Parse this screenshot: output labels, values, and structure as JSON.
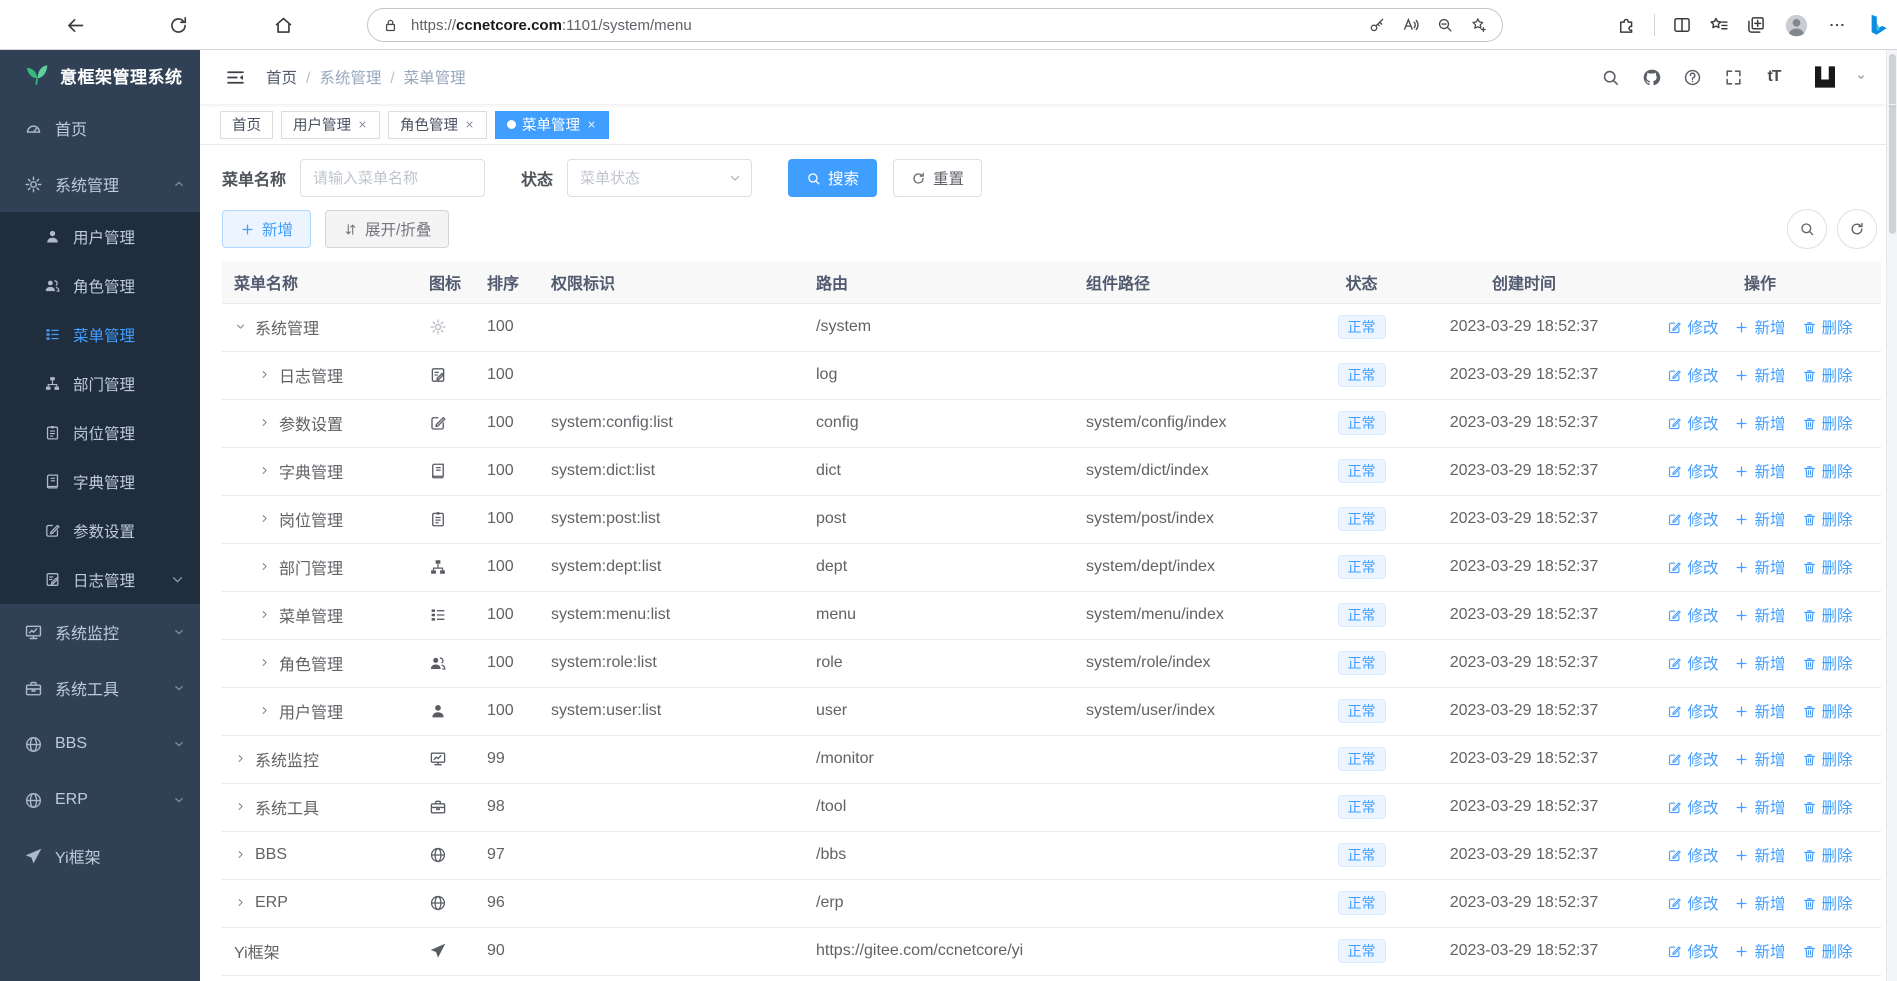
{
  "browser": {
    "url": {
      "scheme": "https://",
      "host": "ccnetcore.com",
      "rest": ":1101/system/menu"
    },
    "left_icons": [
      "back-icon",
      "reload-icon",
      "home-icon"
    ],
    "pill_left_icon": "lock-icon",
    "pill_right_icons": [
      "key-icon",
      "read-aloud-icon",
      "zoom-out-icon",
      "star-plus-icon"
    ],
    "right_icons": [
      "extensions-icon",
      "separator",
      "split-screen-icon",
      "favorites-icon",
      "collections-icon",
      "profile-avatar",
      "more-icon",
      "bing-icon"
    ]
  },
  "glyphs": {
    "font_size": "tT",
    "breadcrumb_separator": "/"
  },
  "sidebar": {
    "title": "意框架管理系统",
    "items": [
      {
        "label": "首页",
        "icon": "dashboard-icon"
      },
      {
        "label": "系统管理",
        "icon": "gear-icon",
        "chevron": "up",
        "children": [
          {
            "label": "用户管理",
            "icon": "user-icon"
          },
          {
            "label": "角色管理",
            "icon": "users-icon"
          },
          {
            "label": "菜单管理",
            "icon": "menu-icon",
            "active": true
          },
          {
            "label": "部门管理",
            "icon": "tree-icon"
          },
          {
            "label": "岗位管理",
            "icon": "badge-icon"
          },
          {
            "label": "字典管理",
            "icon": "book-icon"
          },
          {
            "label": "参数设置",
            "icon": "edit-icon"
          },
          {
            "label": "日志管理",
            "icon": "log-icon",
            "chevron": "down"
          }
        ]
      },
      {
        "label": "系统监控",
        "icon": "monitor-icon",
        "chevron": "down"
      },
      {
        "label": "系统工具",
        "icon": "toolbox-icon",
        "chevron": "down"
      },
      {
        "label": "BBS",
        "icon": "globe-icon",
        "chevron": "down"
      },
      {
        "label": "ERP",
        "icon": "globe-icon",
        "chevron": "down"
      },
      {
        "label": "Yi框架",
        "icon": "plane-icon"
      }
    ]
  },
  "header": {
    "breadcrumb": [
      "首页",
      "系统管理",
      "菜单管理"
    ],
    "right_icons": [
      "search-icon",
      "github-icon",
      "question-icon",
      "fullscreen-icon",
      "font-size-icon"
    ],
    "logo_icon": "yi-logo",
    "logo_caret_icon": "caret-down-icon"
  },
  "tabs": [
    {
      "label": "首页",
      "closable": false,
      "active": false
    },
    {
      "label": "用户管理",
      "closable": true,
      "active": false
    },
    {
      "label": "角色管理",
      "closable": true,
      "active": false
    },
    {
      "label": "菜单管理",
      "closable": true,
      "active": true
    }
  ],
  "filters": {
    "name_label": "菜单名称",
    "name_placeholder": "请输入菜单名称",
    "name_value": "",
    "status_label": "状态",
    "status_placeholder": "菜单状态",
    "search_label": "搜索",
    "reset_label": "重置"
  },
  "toolbar": {
    "add_label": "新增",
    "expand_label": "展开/折叠",
    "right_icons": [
      "search-icon",
      "refresh-icon"
    ]
  },
  "table": {
    "columns": [
      "菜单名称",
      "图标",
      "排序",
      "权限标识",
      "路由",
      "组件路径",
      "状态",
      "创建时间",
      "操作"
    ],
    "ops": {
      "edit": "修改",
      "add": "新增",
      "delete": "删除"
    },
    "rows": [
      {
        "name": "系统管理",
        "icon": "gear-icon",
        "icon_light": true,
        "sort": "100",
        "perm": "",
        "route": "/system",
        "component": "",
        "status": "正常",
        "created": "2023-03-29 18:52:37",
        "level": 1,
        "caret": "expanded"
      },
      {
        "name": "日志管理",
        "icon": "log-icon",
        "sort": "100",
        "perm": "",
        "route": "log",
        "component": "",
        "status": "正常",
        "created": "2023-03-29 18:52:37",
        "level": 2,
        "caret": "collapsed"
      },
      {
        "name": "参数设置",
        "icon": "edit-icon",
        "sort": "100",
        "perm": "system:config:list",
        "route": "config",
        "component": "system/config/index",
        "status": "正常",
        "created": "2023-03-29 18:52:37",
        "level": 2,
        "caret": "collapsed"
      },
      {
        "name": "字典管理",
        "icon": "book-icon",
        "sort": "100",
        "perm": "system:dict:list",
        "route": "dict",
        "component": "system/dict/index",
        "status": "正常",
        "created": "2023-03-29 18:52:37",
        "level": 2,
        "caret": "collapsed"
      },
      {
        "name": "岗位管理",
        "icon": "badge-icon",
        "sort": "100",
        "perm": "system:post:list",
        "route": "post",
        "component": "system/post/index",
        "status": "正常",
        "created": "2023-03-29 18:52:37",
        "level": 2,
        "caret": "collapsed"
      },
      {
        "name": "部门管理",
        "icon": "tree-icon",
        "sort": "100",
        "perm": "system:dept:list",
        "route": "dept",
        "component": "system/dept/index",
        "status": "正常",
        "created": "2023-03-29 18:52:37",
        "level": 2,
        "caret": "collapsed"
      },
      {
        "name": "菜单管理",
        "icon": "menu-icon",
        "sort": "100",
        "perm": "system:menu:list",
        "route": "menu",
        "component": "system/menu/index",
        "status": "正常",
        "created": "2023-03-29 18:52:37",
        "level": 2,
        "caret": "collapsed"
      },
      {
        "name": "角色管理",
        "icon": "users-icon",
        "sort": "100",
        "perm": "system:role:list",
        "route": "role",
        "component": "system/role/index",
        "status": "正常",
        "created": "2023-03-29 18:52:37",
        "level": 2,
        "caret": "collapsed"
      },
      {
        "name": "用户管理",
        "icon": "user-icon",
        "sort": "100",
        "perm": "system:user:list",
        "route": "user",
        "component": "system/user/index",
        "status": "正常",
        "created": "2023-03-29 18:52:37",
        "level": 2,
        "caret": "collapsed"
      },
      {
        "name": "系统监控",
        "icon": "monitor-icon",
        "sort": "99",
        "perm": "",
        "route": "/monitor",
        "component": "",
        "status": "正常",
        "created": "2023-03-29 18:52:37",
        "level": 1,
        "caret": "collapsed"
      },
      {
        "name": "系统工具",
        "icon": "toolbox-icon",
        "sort": "98",
        "perm": "",
        "route": "/tool",
        "component": "",
        "status": "正常",
        "created": "2023-03-29 18:52:37",
        "level": 1,
        "caret": "collapsed"
      },
      {
        "name": "BBS",
        "icon": "globe-icon",
        "sort": "97",
        "perm": "",
        "route": "/bbs",
        "component": "",
        "status": "正常",
        "created": "2023-03-29 18:52:37",
        "level": 1,
        "caret": "collapsed"
      },
      {
        "name": "ERP",
        "icon": "globe-icon",
        "sort": "96",
        "perm": "",
        "route": "/erp",
        "component": "",
        "status": "正常",
        "created": "2023-03-29 18:52:37",
        "level": 1,
        "caret": "collapsed"
      },
      {
        "name": "Yi框架",
        "icon": "plane-icon",
        "sort": "90",
        "perm": "",
        "route": "https://gitee.com/ccnetcore/yi",
        "component": "",
        "status": "正常",
        "created": "2023-03-29 18:52:37",
        "level": 1,
        "caret": "none"
      }
    ]
  },
  "colors": {
    "accent": "#409eff",
    "sidebar_bg": "#304156",
    "submenu_bg": "#1f2d3d",
    "active_tab_bg": "#409eff",
    "status_badge_bg": "#ecf5ff",
    "status_badge_text": "#409eff",
    "logo_green": "#35b97c"
  }
}
